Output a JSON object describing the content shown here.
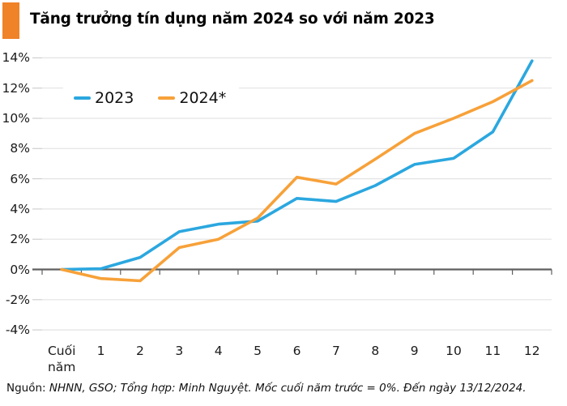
{
  "title": "Tăng trưởng tín dụng năm 2024 so với năm 2023",
  "accent_color": "#F08227",
  "footer": {
    "prefix": "Nguồn:",
    "text": " NHNN, GSO; Tổng hợp: Minh Nguyệt. Mốc cuối năm trước = 0%. Đến ngày 13/12/2024."
  },
  "chart_data": {
    "type": "line",
    "title": "Tăng trưởng tín dụng năm 2024 so với năm 2023",
    "xlabel": "",
    "ylabel": "",
    "categories": [
      "Cuối năm",
      "1",
      "2",
      "3",
      "4",
      "5",
      "6",
      "7",
      "8",
      "9",
      "10",
      "11",
      "12"
    ],
    "series": [
      {
        "name": "2023",
        "color": "#2BA7DF",
        "values": [
          0,
          0.05,
          0.8,
          2.5,
          3.0,
          3.2,
          4.7,
          4.5,
          5.55,
          6.95,
          7.35,
          9.1,
          13.8
        ]
      },
      {
        "name": "2024*",
        "color": "#F7A139",
        "values": [
          0,
          -0.6,
          -0.75,
          1.45,
          2.0,
          3.4,
          6.1,
          5.65,
          7.3,
          9.0,
          10.0,
          11.1,
          12.5
        ]
      }
    ],
    "ylim": [
      -4,
      14
    ],
    "yticks": [
      {
        "value": 14,
        "label": "14%"
      },
      {
        "value": 12,
        "label": "12%"
      },
      {
        "value": 10,
        "label": "10%"
      },
      {
        "value": 8,
        "label": "8%"
      },
      {
        "value": 6,
        "label": "6%"
      },
      {
        "value": 4,
        "label": "4%"
      },
      {
        "value": 2,
        "label": "2%"
      },
      {
        "value": 0,
        "label": "0%"
      },
      {
        "value": -2,
        "label": "-2%"
      },
      {
        "value": -4,
        "label": "-4%"
      }
    ],
    "grid": "horizontal",
    "grid_color": "#E3E3E3",
    "axis_color": "#5F5F5F",
    "tick_color": "#CFCFCF",
    "legend_position": "top-left",
    "unit": "%"
  }
}
